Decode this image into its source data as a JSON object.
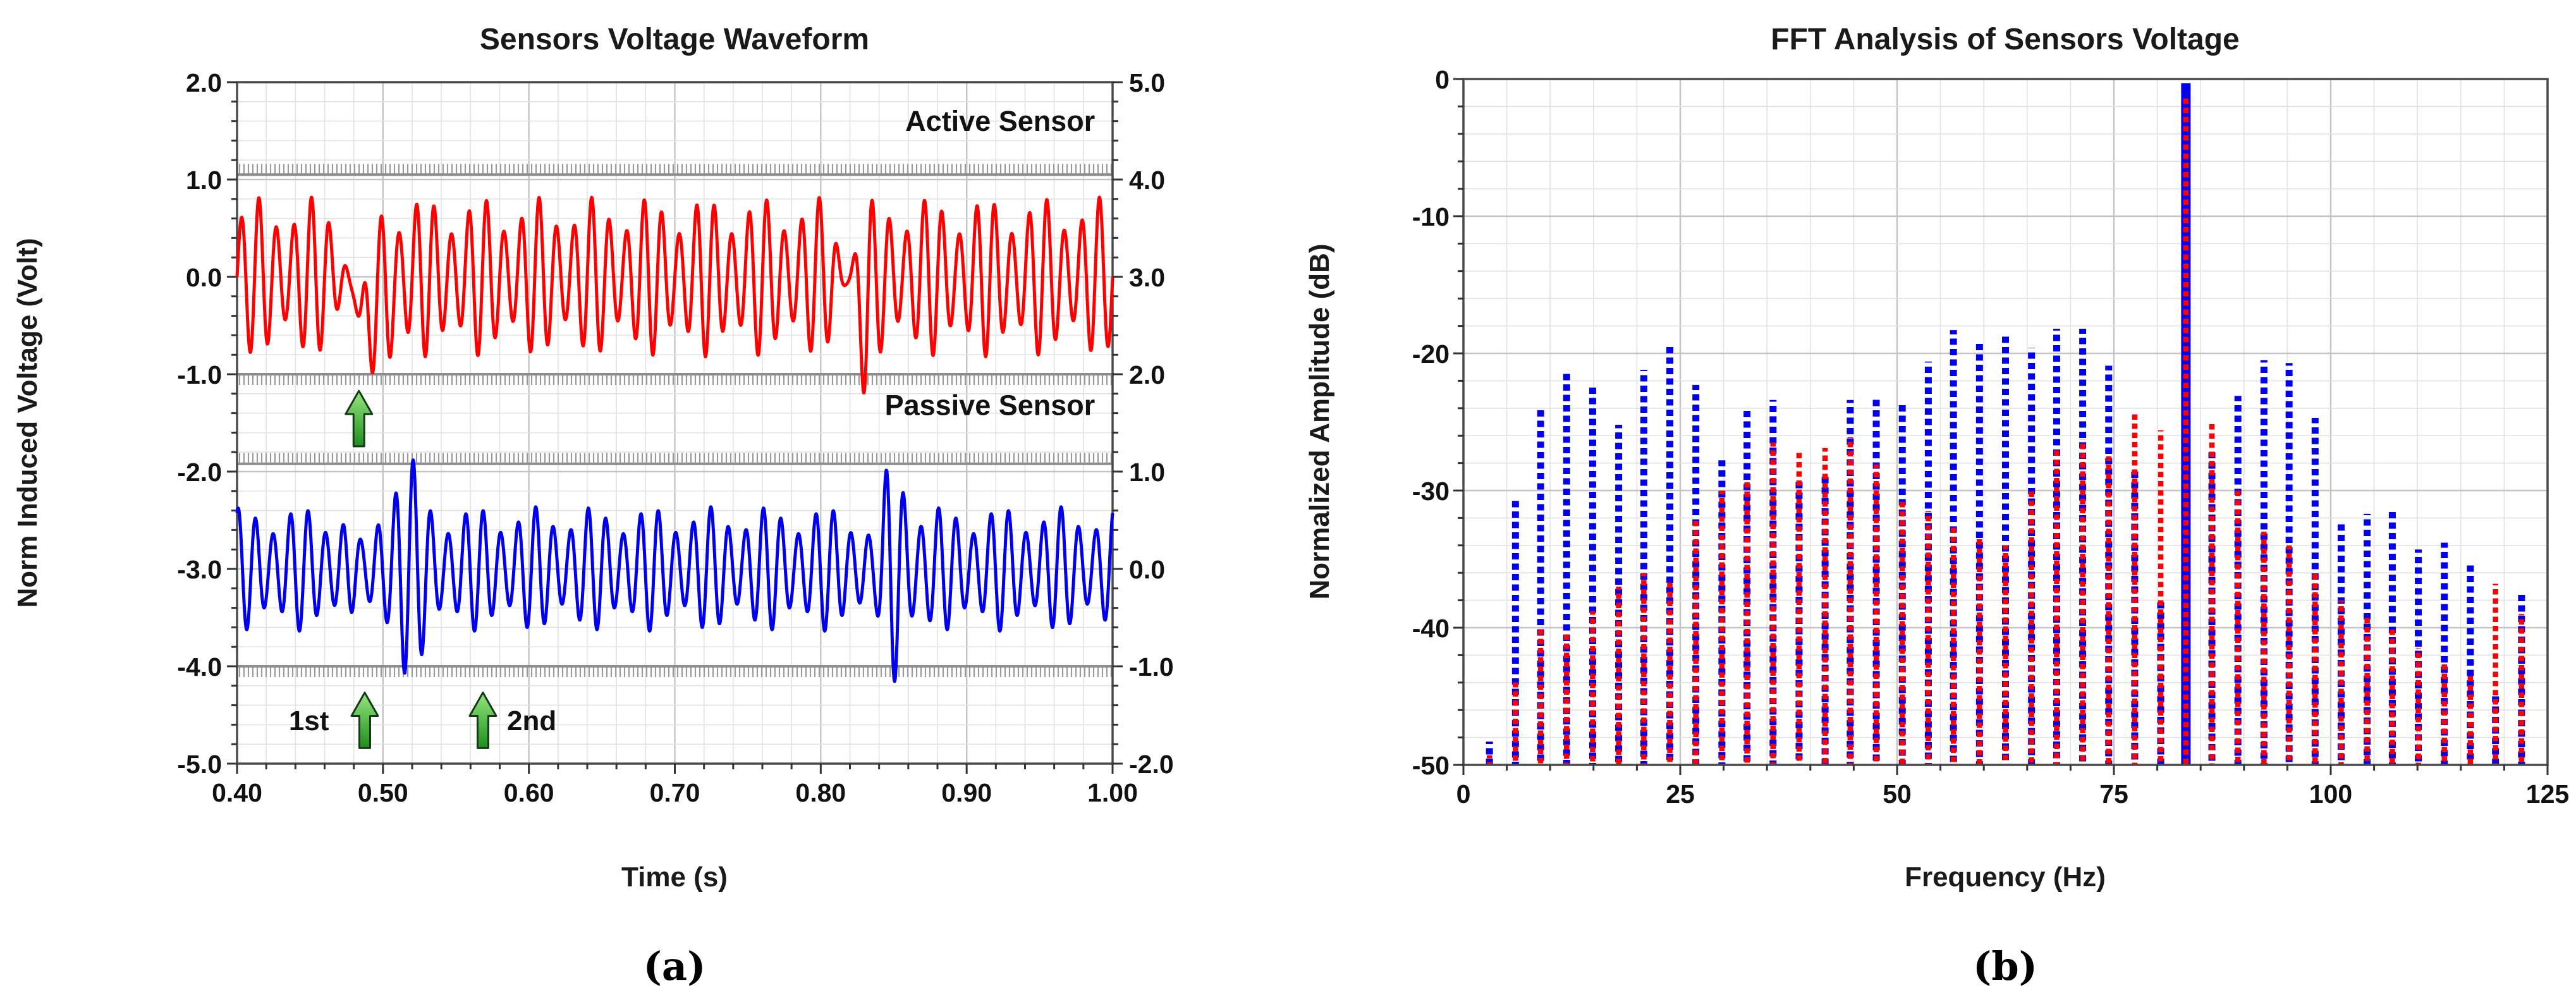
{
  "page": {
    "background": "#ffffff"
  },
  "chart_data": [
    {
      "type": "line",
      "panel": "a",
      "title": "Sensors Voltage Waveform",
      "xlabel": "Time (s)",
      "ylabel": "Norm Induced Voltage (Volt)",
      "caption": "(a)",
      "x_range": [
        0.4,
        1.0
      ],
      "x_major": 0.1,
      "x_minor": 0.02,
      "y_left_range": [
        -5.0,
        2.0
      ],
      "y_right_range": [
        -2.0,
        5.0
      ],
      "y_major": 1.0,
      "y_minor": 0.2,
      "x_tick_labels": [
        "0.40",
        "0.50",
        "0.60",
        "0.70",
        "0.80",
        "0.90",
        "1.00"
      ],
      "y_left_tick_labels": [
        "2.0",
        "1.0",
        "0.0",
        "-1.0",
        "-2.0",
        "-3.0",
        "-4.0",
        "-5.0"
      ],
      "y_right_tick_labels": [
        "5.0",
        "4.0",
        "3.0",
        "2.0",
        "1.0",
        "0.0",
        "-1.0",
        "-2.0"
      ],
      "grid": "on",
      "legend_position": "none",
      "colors": {
        "active": "#FF0000",
        "passive": "#0000EE",
        "grid_minor": "#E2E2E2",
        "grid_major": "#C4C4C4",
        "frame": "#4A4A4A",
        "rail": "#8C8C8C",
        "arrow_fill_top": "#96E67F",
        "arrow_fill_bottom": "#1E8F1E",
        "arrow_stroke": "#163916"
      },
      "rails": [
        {
          "v": 1.05,
          "hatch": "up"
        },
        {
          "v": -1.0,
          "hatch": "down"
        },
        {
          "v": -1.92,
          "hatch": "up"
        },
        {
          "v": -4.0,
          "hatch": "down"
        }
      ],
      "series": [
        {
          "name": "Active Sensor",
          "color": "#FF0000",
          "label_pos": {
            "t": 0.988,
            "v": 1.5,
            "anchor": "end"
          },
          "synth": {
            "base": 0.0,
            "carrier_hz": 83.33,
            "phase": 0.0,
            "amp0": 0.63,
            "beat": {
              "a": 0.19,
              "hz": 26.0,
              "ph": -0.6
            },
            "amp_events": [
              {
                "t0": 0.4795,
                "s": 0.0095,
                "k": -0.93
              },
              {
                "t0": 0.5045,
                "s": 0.005,
                "k": 0.28
              },
              {
                "t0": 0.818,
                "s": 0.008,
                "k": -0.82
              },
              {
                "t0": 0.8305,
                "s": 0.005,
                "k": 0.3
              }
            ],
            "base_events": [
              {
                "t0": 0.4875,
                "s": 0.0075,
                "k": -0.48
              },
              {
                "t0": 0.5045,
                "s": 0.004,
                "k": -0.2
              },
              {
                "t0": 0.8305,
                "s": 0.0042,
                "k": -0.42
              }
            ]
          }
        },
        {
          "name": "Passive Sensor",
          "color": "#0000EE",
          "label_pos": {
            "t": 0.988,
            "v": -1.42,
            "anchor": "end"
          },
          "synth": {
            "base": -3.0,
            "carrier_hz": 83.33,
            "phase": 1.2,
            "amp0": 0.5,
            "beat": {
              "a": 0.14,
              "hz": 25.0,
              "ph": 1.0
            },
            "amp_events": [
              {
                "t0": 0.4865,
                "s": 0.009,
                "k": -0.55
              },
              {
                "t0": 0.5135,
                "s": 0.0135,
                "k": 1.05
              },
              {
                "t0": 0.837,
                "s": 0.008,
                "k": -0.5
              },
              {
                "t0": 0.8495,
                "s": 0.012,
                "k": 1.12
              }
            ],
            "base_events": []
          }
        }
      ],
      "annotations": {
        "arrows": [
          {
            "t": 0.4835,
            "tip_v": -1.17,
            "tail_v": -1.74
          },
          {
            "t": 0.4875,
            "tip_v": -4.27,
            "tail_v": -4.84
          },
          {
            "t": 0.5685,
            "tip_v": -4.27,
            "tail_v": -4.84
          }
        ],
        "texts": [
          {
            "label": "1st",
            "t": 0.463,
            "v": -4.56,
            "anchor": "end"
          },
          {
            "label": "2nd",
            "t": 0.585,
            "v": -4.56,
            "anchor": "start"
          }
        ]
      }
    },
    {
      "type": "bar",
      "panel": "b",
      "title": "FFT Analysis of Sensors Voltage",
      "xlabel": "Frequency (Hz)",
      "ylabel": "Normalized Amplitude (dB)",
      "caption": "(b)",
      "x_range": [
        0,
        125
      ],
      "x_major": 25,
      "x_minor": 5,
      "y_range": [
        -50,
        0
      ],
      "y_major": 10,
      "y_minor": 2,
      "x_tick_labels": [
        "0",
        "25",
        "50",
        "75",
        "100",
        "125"
      ],
      "y_tick_labels": [
        "0",
        "-10",
        "-20",
        "-30",
        "-40",
        "-50"
      ],
      "grid": "on",
      "legend_position": "none",
      "bar_style": "dashed-stem",
      "colors": {
        "passive": "#0000EE",
        "active": "#FF0000",
        "grid_minor": "#E2E2E2",
        "grid_major": "#C4C4C4",
        "frame": "#4A4A4A"
      },
      "frequencies": [
        3.0,
        6.0,
        8.9,
        11.9,
        14.9,
        17.9,
        20.8,
        23.8,
        26.8,
        29.8,
        32.7,
        35.7,
        38.7,
        41.7,
        44.6,
        47.6,
        50.6,
        53.6,
        56.5,
        59.5,
        62.5,
        65.5,
        68.4,
        71.4,
        74.4,
        77.4,
        80.4,
        83.3,
        86.3,
        89.3,
        92.3,
        95.2,
        98.2,
        101.2,
        104.2,
        107.1,
        110.1,
        113.1,
        116.1,
        119.0,
        122.0
      ],
      "series": [
        {
          "name": "Passive Sensor",
          "color": "#0000EE",
          "values": [
            -48.3,
            -30.7,
            -23.9,
            -21.2,
            -22.5,
            -25.2,
            -21.2,
            -19.3,
            -22.3,
            -27.8,
            -24.0,
            -23.4,
            -29.3,
            -29.0,
            -23.4,
            -23.2,
            -23.6,
            -20.6,
            -18.3,
            -19.2,
            -18.6,
            -19.6,
            -18.2,
            -18.2,
            -20.9,
            -28.5,
            -38.0,
            -0.3,
            -27.2,
            -23.1,
            -20.5,
            -20.7,
            -24.7,
            -32.3,
            -31.7,
            -31.3,
            -34.3,
            -33.8,
            -35.3,
            -45.0,
            -37.5
          ]
        },
        {
          "name": "Active Sensor",
          "color": "#FF0000",
          "values": [
            -49.3,
            -44.0,
            -40.0,
            -40.3,
            -38.8,
            -37.0,
            -36.0,
            -36.5,
            -32.0,
            -30.0,
            -29.3,
            -26.5,
            -27.1,
            -26.9,
            -26.1,
            -28.1,
            -30.8,
            -31.5,
            -32.5,
            -33.5,
            -34.0,
            -30.0,
            -27.0,
            -26.3,
            -27.5,
            -24.4,
            -25.6,
            -1.2,
            -25.1,
            -30.0,
            -33.0,
            -34.0,
            -36.0,
            -38.0,
            -39.0,
            -40.0,
            -41.5,
            -42.5,
            -43.5,
            -36.8,
            -39.0
          ]
        }
      ]
    }
  ]
}
